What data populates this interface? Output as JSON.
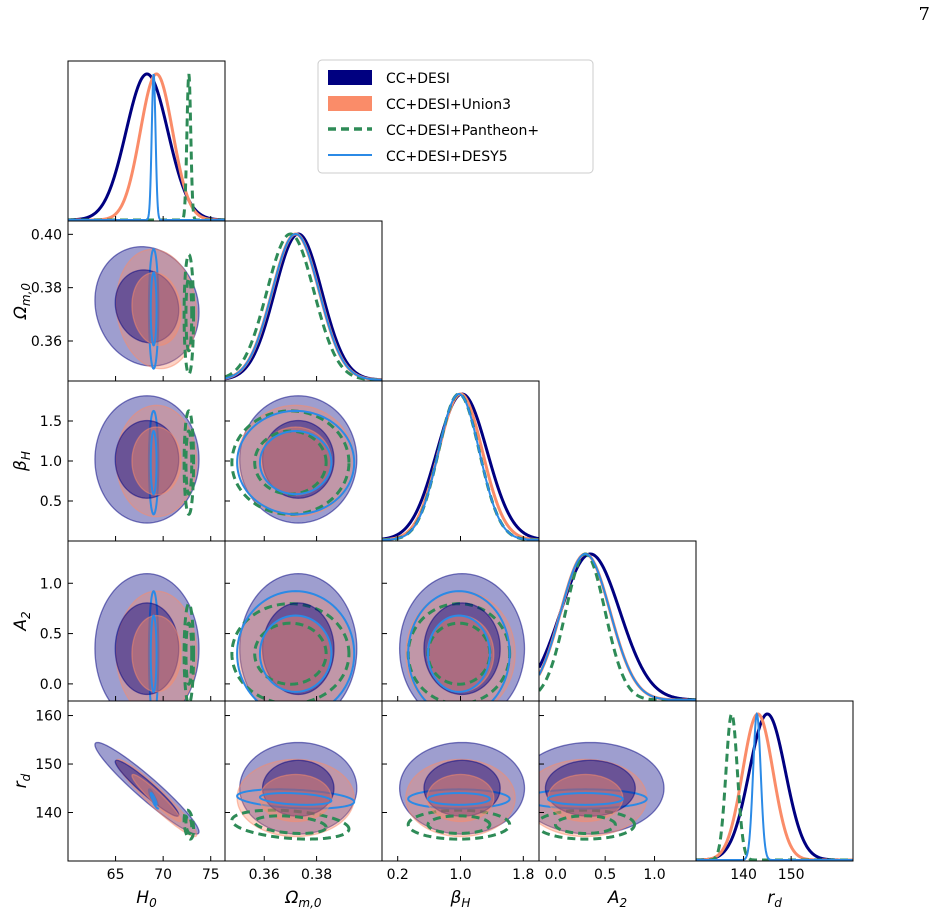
{
  "page": {
    "number": 7
  },
  "chart_data": {
    "type": "corner",
    "params": [
      {
        "symbol": "H",
        "subscript": "0",
        "lim": [
          60,
          76.5
        ],
        "xticks": [
          65,
          70,
          75
        ]
      },
      {
        "symbol": "Ω",
        "subscript": "m,0",
        "lim": [
          0.345,
          0.405
        ],
        "xticks": [
          0.36,
          0.38
        ],
        "yticks": [
          0.36,
          0.38,
          {
            "value": 0.4,
            "label": "0.40"
          }
        ]
      },
      {
        "symbol": "β",
        "subscript": "H",
        "lim": [
          0,
          2
        ],
        "xticks": [
          0.2,
          {
            "value": 1,
            "label": "1.0"
          },
          1.8
        ],
        "yticks": [
          0.5,
          {
            "value": 1,
            "label": "1.0"
          },
          1.5
        ]
      },
      {
        "symbol": "A",
        "subscript": "2",
        "lim": [
          -0.17,
          1.42
        ],
        "xticks": [
          {
            "value": 0,
            "label": "0.0"
          },
          0.5,
          {
            "value": 1,
            "label": "1.0"
          }
        ],
        "yticks": [
          {
            "value": 0,
            "label": "0.0"
          },
          0.5,
          {
            "value": 1,
            "label": "1.0"
          }
        ]
      },
      {
        "symbol": "r",
        "subscript": "d",
        "lim": [
          130,
          163
        ],
        "xticks": [
          140,
          150
        ],
        "yticks": [
          140,
          150,
          160
        ]
      }
    ],
    "series": [
      {
        "name": "CC+DESI",
        "color": "#000080",
        "style": "filled",
        "mean": [
          68.3,
          0.373,
          1.02,
          0.35,
          145.0
        ],
        "sigma": [
          2.2,
          0.009,
          0.32,
          0.3,
          3.8
        ],
        "correlation": [
          [
            1,
            -0.1,
            0,
            0,
            -0.95
          ],
          [
            -0.1,
            1,
            0,
            0,
            0
          ],
          [
            0,
            0,
            1,
            0,
            0
          ],
          [
            0,
            0,
            0,
            1,
            0
          ],
          [
            -0.95,
            0,
            0,
            0,
            1
          ]
        ]
      },
      {
        "name": "CC+DESI+Union3",
        "color": "#fa8c69",
        "style": "filled",
        "mean": [
          69.3,
          0.372,
          1.0,
          0.3,
          143.0
        ],
        "sigma": [
          1.7,
          0.009,
          0.28,
          0.25,
          3.2
        ],
        "correlation": [
          [
            1,
            -0.1,
            0,
            0,
            -0.95
          ],
          [
            -0.1,
            1,
            0,
            0,
            0
          ],
          [
            0,
            0,
            1,
            0,
            0
          ],
          [
            0,
            0,
            0,
            1,
            0
          ],
          [
            -0.95,
            0,
            0,
            0,
            1
          ]
        ]
      },
      {
        "name": "CC+DESI+Pantheon+",
        "color": "#2e8b57",
        "style": "dashed",
        "mean": [
          72.7,
          0.37,
          0.98,
          0.3,
          137.5
        ],
        "sigma": [
          0.2,
          0.009,
          0.26,
          0.2,
          1.2
        ],
        "correlation": [
          [
            1,
            0,
            0,
            0,
            -0.3
          ],
          [
            0,
            1,
            0,
            0,
            -0.3
          ],
          [
            0,
            0,
            1,
            0,
            0
          ],
          [
            0,
            0,
            0,
            1,
            0
          ],
          [
            -0.3,
            -0.3,
            0,
            0,
            1
          ]
        ]
      },
      {
        "name": "CC+DESI+DESY5",
        "color": "#2b8ae6",
        "style": "solid",
        "mean": [
          69.0,
          0.372,
          0.98,
          0.3,
          142.8
        ],
        "sigma": [
          0.2,
          0.009,
          0.26,
          0.25,
          0.8
        ],
        "correlation": [
          [
            1,
            0,
            0,
            0,
            -0.9
          ],
          [
            0,
            1,
            0,
            0,
            -0.3
          ],
          [
            0,
            0,
            1,
            0,
            0
          ],
          [
            0,
            0,
            0,
            1,
            0
          ],
          [
            -0.9,
            -0.3,
            0,
            0,
            1
          ]
        ]
      }
    ]
  }
}
